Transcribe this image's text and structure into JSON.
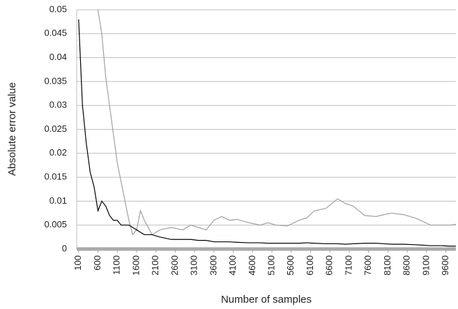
{
  "chart_data": {
    "type": "line",
    "xlabel": "Number of samples",
    "ylabel": "Absolute error value",
    "x": [
      100,
      200,
      300,
      400,
      500,
      600,
      700,
      800,
      900,
      1000,
      1100,
      1200,
      1300,
      1400,
      1500,
      1600,
      1700,
      1800,
      2000,
      2200,
      2500,
      2800,
      3000,
      3200,
      3400,
      3600,
      3800,
      4000,
      4200,
      4500,
      4800,
      5000,
      5200,
      5500,
      5800,
      6000,
      6200,
      6500,
      6800,
      7000,
      7200,
      7500,
      7800,
      8000,
      8200,
      8500,
      8800,
      9000,
      9200,
      9500,
      9700,
      9900
    ],
    "series": [
      {
        "color": "#a0a0a0",
        "values": [
          null,
          null,
          null,
          null,
          null,
          0.05,
          0.045,
          0.036,
          0.03,
          0.024,
          0.018,
          0.014,
          0.01,
          0.006,
          0.003,
          0.004,
          0.008,
          0.006,
          0.003,
          0.004,
          0.0045,
          0.004,
          0.005,
          0.0045,
          0.004,
          0.006,
          0.0068,
          0.006,
          0.0062,
          0.0055,
          0.005,
          0.0055,
          0.005,
          0.0048,
          0.006,
          0.0065,
          0.008,
          0.0085,
          0.0105,
          0.0095,
          0.009,
          0.007,
          0.0068,
          0.0072,
          0.0075,
          0.0072,
          0.0065,
          0.0058,
          0.005,
          0.005,
          0.005,
          0.0052
        ]
      },
      {
        "color": "#000000",
        "values": [
          0.048,
          0.03,
          0.022,
          0.016,
          0.013,
          0.008,
          0.01,
          0.009,
          0.007,
          0.006,
          0.006,
          0.005,
          0.005,
          0.005,
          0.0045,
          0.004,
          0.0035,
          0.003,
          0.003,
          0.0025,
          0.002,
          0.002,
          0.002,
          0.0018,
          0.0018,
          0.0015,
          0.0015,
          0.0015,
          0.0014,
          0.0013,
          0.0013,
          0.0012,
          0.0012,
          0.0012,
          0.0012,
          0.0013,
          0.0012,
          0.0011,
          0.0011,
          0.001,
          0.0011,
          0.0012,
          0.0012,
          0.0011,
          0.001,
          0.001,
          0.0009,
          0.0008,
          0.0007,
          0.0007,
          0.0006,
          0.0006
        ]
      }
    ],
    "xlim": [
      50,
      9860
    ],
    "xticks": [
      100,
      600,
      1100,
      1600,
      2100,
      2600,
      3100,
      3600,
      4100,
      4600,
      5100,
      5600,
      6100,
      6600,
      7100,
      7600,
      8100,
      8600,
      9100,
      9600
    ],
    "ylim": [
      0,
      0.05
    ],
    "yticks": [
      0,
      0.005,
      0.01,
      0.015,
      0.02,
      0.025,
      0.03,
      0.035,
      0.04,
      0.045,
      0.05
    ],
    "grid": true
  }
}
